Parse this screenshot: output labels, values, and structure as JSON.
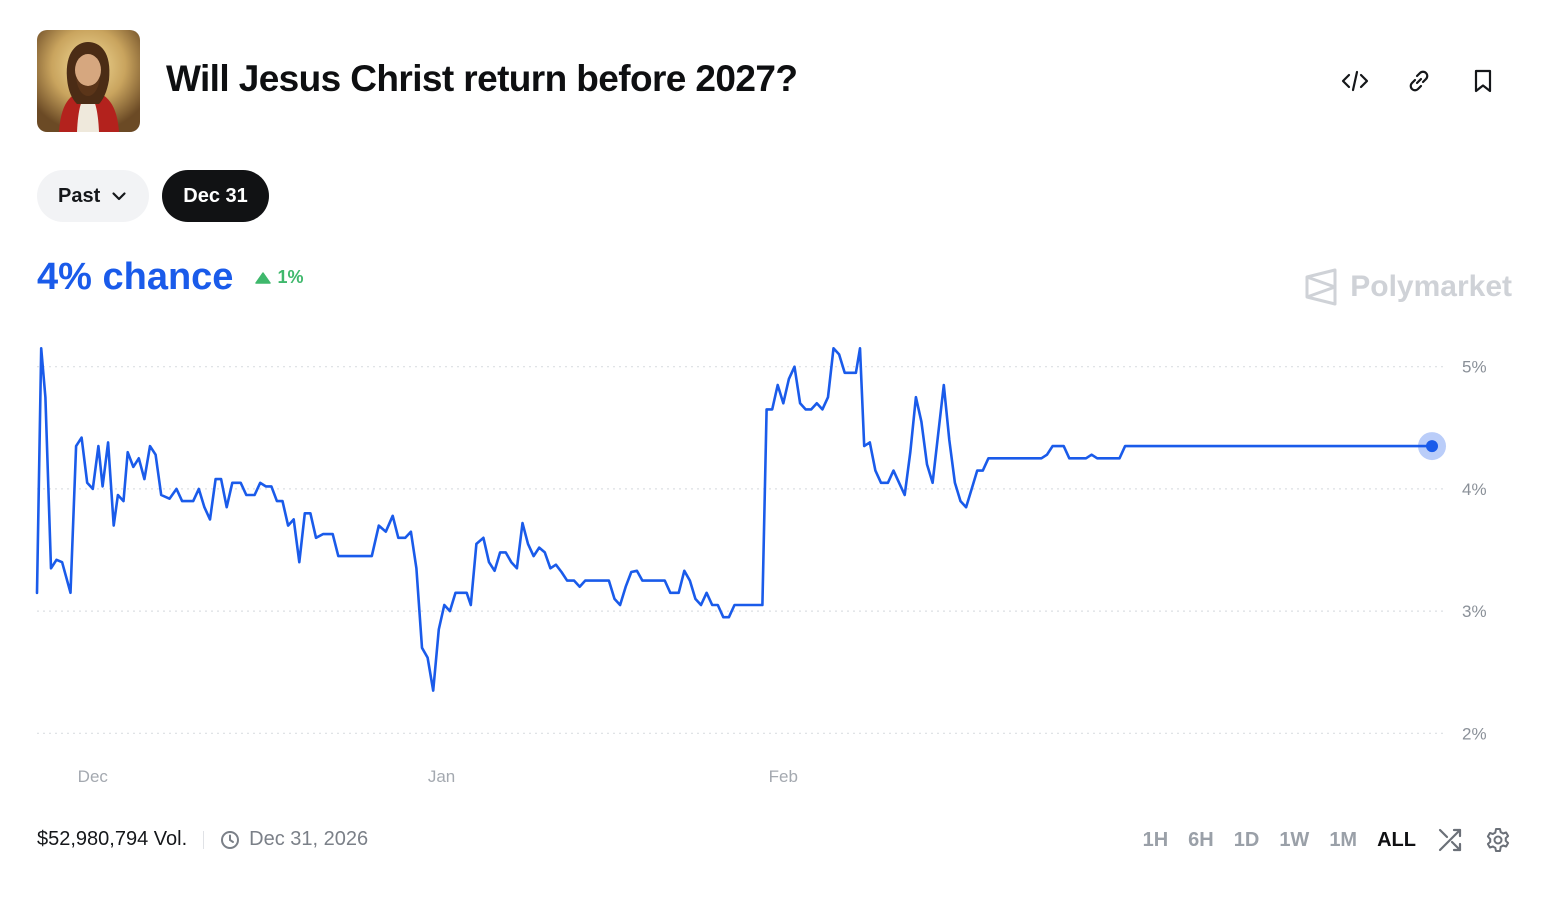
{
  "market": {
    "title": "Will Jesus Christ return before 2027?",
    "thumbnail_icon": "jesus-portrait-thumbnail"
  },
  "header_actions": [
    {
      "name": "embed-code-button",
      "icon": "code-icon"
    },
    {
      "name": "copy-link-button",
      "icon": "link-icon"
    },
    {
      "name": "bookmark-button",
      "icon": "bookmark-icon"
    }
  ],
  "filters": {
    "past_label": "Past",
    "selected_label": "Dec 31"
  },
  "summary": {
    "chance_text": "4% chance",
    "change_text": "1%",
    "change_direction": "up",
    "change_color": "#3fb86c",
    "accent_color": "#1a5bea"
  },
  "brand": {
    "name": "Polymarket"
  },
  "footer": {
    "volume_text": "$52,980,794 Vol.",
    "end_date_text": "Dec 31, 2026"
  },
  "time_ranges": [
    "1H",
    "6H",
    "1D",
    "1W",
    "1M",
    "ALL"
  ],
  "active_range": "ALL",
  "chart_data": {
    "type": "line",
    "y_unit": "%",
    "ylim": [
      1.7,
      5.3
    ],
    "y_ticks": [
      {
        "value": 5,
        "label": "5%"
      },
      {
        "value": 4,
        "label": "4%"
      },
      {
        "value": 3,
        "label": "3%"
      },
      {
        "value": 2,
        "label": "2%"
      }
    ],
    "x_ticks": [
      {
        "value": 0.04,
        "label": "Dec"
      },
      {
        "value": 0.29,
        "label": "Jan"
      },
      {
        "value": 0.535,
        "label": "Feb"
      }
    ],
    "xlim": [
      0,
      1
    ],
    "grid": true,
    "line_color": "#1a5bea",
    "series": [
      {
        "points": [
          [
            0.0,
            3.15
          ],
          [
            0.003,
            5.15
          ],
          [
            0.006,
            4.75
          ],
          [
            0.01,
            3.35
          ],
          [
            0.014,
            3.42
          ],
          [
            0.018,
            3.4
          ],
          [
            0.024,
            3.15
          ],
          [
            0.028,
            4.35
          ],
          [
            0.032,
            4.42
          ],
          [
            0.036,
            4.05
          ],
          [
            0.04,
            4.0
          ],
          [
            0.044,
            4.35
          ],
          [
            0.047,
            4.02
          ],
          [
            0.051,
            4.38
          ],
          [
            0.055,
            3.7
          ],
          [
            0.058,
            3.95
          ],
          [
            0.062,
            3.9
          ],
          [
            0.065,
            4.3
          ],
          [
            0.069,
            4.18
          ],
          [
            0.073,
            4.25
          ],
          [
            0.077,
            4.08
          ],
          [
            0.081,
            4.35
          ],
          [
            0.085,
            4.28
          ],
          [
            0.089,
            3.95
          ],
          [
            0.095,
            3.92
          ],
          [
            0.1,
            4.0
          ],
          [
            0.104,
            3.9
          ],
          [
            0.112,
            3.9
          ],
          [
            0.116,
            4.0
          ],
          [
            0.12,
            3.85
          ],
          [
            0.124,
            3.75
          ],
          [
            0.128,
            4.08
          ],
          [
            0.132,
            4.08
          ],
          [
            0.136,
            3.85
          ],
          [
            0.14,
            4.05
          ],
          [
            0.146,
            4.05
          ],
          [
            0.15,
            3.95
          ],
          [
            0.156,
            3.95
          ],
          [
            0.16,
            4.05
          ],
          [
            0.164,
            4.02
          ],
          [
            0.168,
            4.02
          ],
          [
            0.172,
            3.9
          ],
          [
            0.176,
            3.9
          ],
          [
            0.18,
            3.7
          ],
          [
            0.184,
            3.75
          ],
          [
            0.188,
            3.4
          ],
          [
            0.192,
            3.8
          ],
          [
            0.196,
            3.8
          ],
          [
            0.2,
            3.6
          ],
          [
            0.205,
            3.63
          ],
          [
            0.212,
            3.63
          ],
          [
            0.216,
            3.45
          ],
          [
            0.24,
            3.45
          ],
          [
            0.245,
            3.7
          ],
          [
            0.25,
            3.65
          ],
          [
            0.255,
            3.78
          ],
          [
            0.259,
            3.6
          ],
          [
            0.264,
            3.6
          ],
          [
            0.268,
            3.65
          ],
          [
            0.272,
            3.35
          ],
          [
            0.276,
            2.7
          ],
          [
            0.28,
            2.62
          ],
          [
            0.284,
            2.35
          ],
          [
            0.288,
            2.85
          ],
          [
            0.292,
            3.05
          ],
          [
            0.296,
            3.0
          ],
          [
            0.3,
            3.15
          ],
          [
            0.308,
            3.15
          ],
          [
            0.311,
            3.05
          ],
          [
            0.315,
            3.55
          ],
          [
            0.32,
            3.6
          ],
          [
            0.324,
            3.4
          ],
          [
            0.328,
            3.33
          ],
          [
            0.332,
            3.48
          ],
          [
            0.336,
            3.48
          ],
          [
            0.34,
            3.4
          ],
          [
            0.344,
            3.35
          ],
          [
            0.348,
            3.72
          ],
          [
            0.352,
            3.55
          ],
          [
            0.356,
            3.45
          ],
          [
            0.36,
            3.52
          ],
          [
            0.364,
            3.48
          ],
          [
            0.368,
            3.35
          ],
          [
            0.372,
            3.38
          ],
          [
            0.376,
            3.32
          ],
          [
            0.38,
            3.25
          ],
          [
            0.385,
            3.25
          ],
          [
            0.389,
            3.2
          ],
          [
            0.393,
            3.25
          ],
          [
            0.405,
            3.25
          ],
          [
            0.41,
            3.25
          ],
          [
            0.414,
            3.1
          ],
          [
            0.418,
            3.05
          ],
          [
            0.422,
            3.2
          ],
          [
            0.426,
            3.32
          ],
          [
            0.43,
            3.33
          ],
          [
            0.434,
            3.25
          ],
          [
            0.45,
            3.25
          ],
          [
            0.454,
            3.15
          ],
          [
            0.46,
            3.15
          ],
          [
            0.464,
            3.33
          ],
          [
            0.468,
            3.25
          ],
          [
            0.472,
            3.1
          ],
          [
            0.476,
            3.05
          ],
          [
            0.48,
            3.15
          ],
          [
            0.484,
            3.05
          ],
          [
            0.488,
            3.05
          ],
          [
            0.492,
            2.95
          ],
          [
            0.496,
            2.95
          ],
          [
            0.5,
            3.05
          ],
          [
            0.518,
            3.05
          ],
          [
            0.52,
            3.05
          ],
          [
            0.523,
            4.65
          ],
          [
            0.527,
            4.65
          ],
          [
            0.531,
            4.85
          ],
          [
            0.535,
            4.7
          ],
          [
            0.539,
            4.9
          ],
          [
            0.543,
            5.0
          ],
          [
            0.547,
            4.7
          ],
          [
            0.551,
            4.65
          ],
          [
            0.555,
            4.65
          ],
          [
            0.559,
            4.7
          ],
          [
            0.563,
            4.65
          ],
          [
            0.567,
            4.75
          ],
          [
            0.571,
            5.15
          ],
          [
            0.575,
            5.1
          ],
          [
            0.579,
            4.95
          ],
          [
            0.587,
            4.95
          ],
          [
            0.59,
            5.15
          ],
          [
            0.593,
            4.35
          ],
          [
            0.597,
            4.38
          ],
          [
            0.601,
            4.15
          ],
          [
            0.605,
            4.05
          ],
          [
            0.61,
            4.05
          ],
          [
            0.614,
            4.15
          ],
          [
            0.618,
            4.05
          ],
          [
            0.622,
            3.95
          ],
          [
            0.626,
            4.3
          ],
          [
            0.63,
            4.75
          ],
          [
            0.634,
            4.55
          ],
          [
            0.638,
            4.2
          ],
          [
            0.642,
            4.05
          ],
          [
            0.646,
            4.45
          ],
          [
            0.65,
            4.85
          ],
          [
            0.654,
            4.4
          ],
          [
            0.658,
            4.05
          ],
          [
            0.662,
            3.9
          ],
          [
            0.666,
            3.85
          ],
          [
            0.67,
            4.0
          ],
          [
            0.674,
            4.15
          ],
          [
            0.678,
            4.15
          ],
          [
            0.682,
            4.25
          ],
          [
            0.72,
            4.25
          ],
          [
            0.724,
            4.28
          ],
          [
            0.728,
            4.35
          ],
          [
            0.736,
            4.35
          ],
          [
            0.74,
            4.25
          ],
          [
            0.752,
            4.25
          ],
          [
            0.756,
            4.28
          ],
          [
            0.76,
            4.25
          ],
          [
            0.776,
            4.25
          ],
          [
            0.78,
            4.35
          ],
          [
            1.0,
            4.35
          ]
        ]
      }
    ]
  }
}
